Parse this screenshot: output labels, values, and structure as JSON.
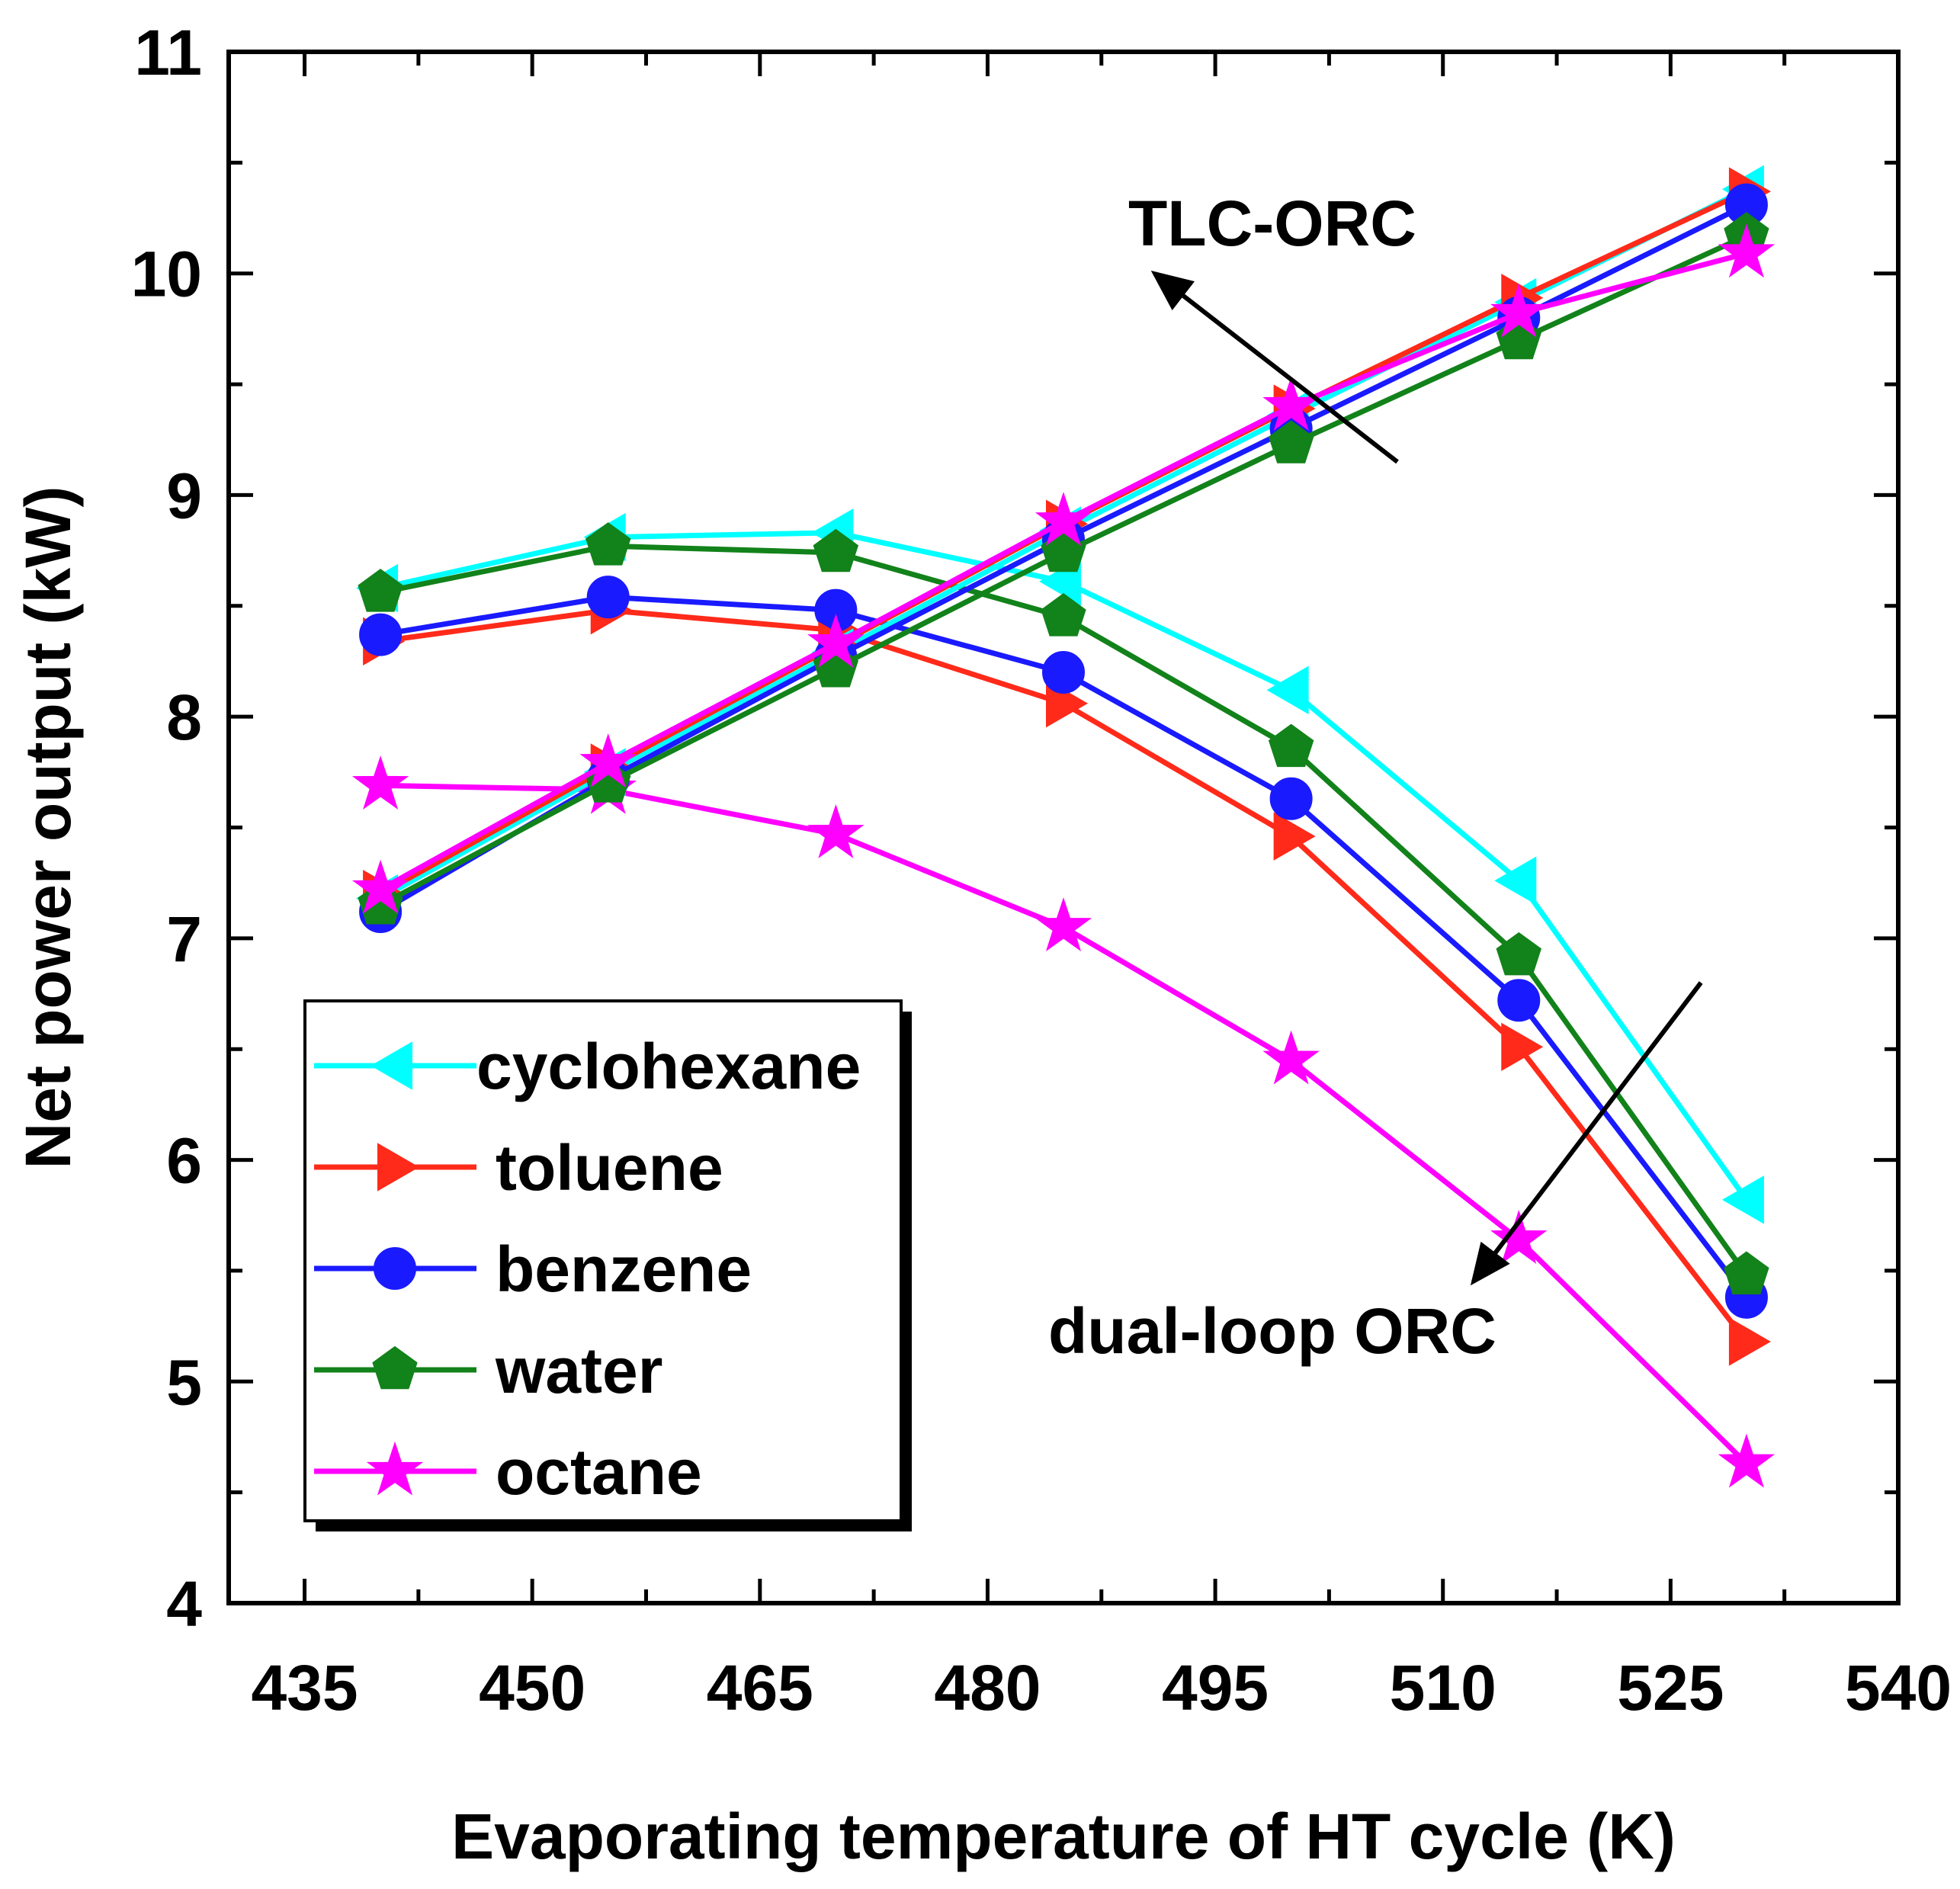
{
  "chart_data": {
    "type": "line",
    "title": "",
    "xlabel": "Evaporating temperature of HT cycle (K)",
    "ylabel": "Net power output (kW)",
    "xlim": [
      430,
      540
    ],
    "ylim": [
      4,
      11
    ],
    "xticks": [
      435,
      450,
      465,
      480,
      495,
      510,
      525,
      540
    ],
    "yticks": [
      4,
      5,
      6,
      7,
      8,
      9,
      10,
      11
    ],
    "x": [
      440,
      455,
      470,
      485,
      500,
      515,
      530
    ],
    "legend_position": "bottom-left",
    "series": [
      {
        "name": "cyclohexane",
        "group": "dual-loop ORC",
        "color": "#00ffff",
        "marker": "triangle-left",
        "values": [
          8.58,
          8.81,
          8.83,
          8.61,
          8.12,
          7.26,
          5.82
        ]
      },
      {
        "name": "toluene",
        "group": "dual-loop ORC",
        "color": "#ff2a1a",
        "marker": "triangle-right",
        "values": [
          8.34,
          8.48,
          8.39,
          8.06,
          7.46,
          6.51,
          5.18
        ]
      },
      {
        "name": "benzene",
        "group": "dual-loop ORC",
        "color": "#1a1aff",
        "marker": "circle",
        "values": [
          8.37,
          8.54,
          8.48,
          8.2,
          7.63,
          6.72,
          5.38
        ]
      },
      {
        "name": "water",
        "group": "dual-loop ORC",
        "color": "#12821a",
        "marker": "pentagon",
        "values": [
          8.56,
          8.77,
          8.74,
          8.45,
          7.86,
          6.92,
          5.48
        ]
      },
      {
        "name": "octane",
        "group": "dual-loop ORC",
        "color": "#ff00ff",
        "marker": "star",
        "values": [
          7.69,
          7.67,
          7.47,
          7.05,
          6.45,
          5.64,
          4.63
        ]
      },
      {
        "name": "cyclohexane",
        "group": "TLC-ORC",
        "color": "#00ffff",
        "marker": "triangle-left",
        "values": [
          7.18,
          7.75,
          8.29,
          8.84,
          9.36,
          9.87,
          10.38
        ]
      },
      {
        "name": "toluene",
        "group": "TLC-ORC",
        "color": "#ff2a1a",
        "marker": "triangle-right",
        "values": [
          7.2,
          7.77,
          8.32,
          8.87,
          9.39,
          9.89,
          10.37
        ]
      },
      {
        "name": "benzene",
        "group": "TLC-ORC",
        "color": "#1a1aff",
        "marker": "circle",
        "values": [
          7.12,
          7.72,
          8.27,
          8.8,
          9.3,
          9.8,
          10.31
        ]
      },
      {
        "name": "water",
        "group": "TLC-ORC",
        "color": "#12821a",
        "marker": "pentagon",
        "values": [
          7.15,
          7.7,
          8.22,
          8.74,
          9.23,
          9.7,
          10.17
        ]
      },
      {
        "name": "octane",
        "group": "TLC-ORC",
        "color": "#ff00ff",
        "marker": "star",
        "values": [
          7.22,
          7.79,
          8.33,
          8.88,
          9.4,
          9.82,
          10.09
        ]
      }
    ],
    "legend": [
      "cyclohexane",
      "toluene",
      "benzene",
      "water",
      "octane"
    ],
    "annotations": [
      {
        "text": "TLC-ORC",
        "arrow_from": [
          507,
          9.15
        ],
        "arrow_to": [
          491,
          10.0
        ]
      },
      {
        "text": "dual-loop ORC",
        "arrow_from": [
          527,
          6.8
        ],
        "arrow_to": [
          512,
          5.45
        ]
      }
    ]
  }
}
